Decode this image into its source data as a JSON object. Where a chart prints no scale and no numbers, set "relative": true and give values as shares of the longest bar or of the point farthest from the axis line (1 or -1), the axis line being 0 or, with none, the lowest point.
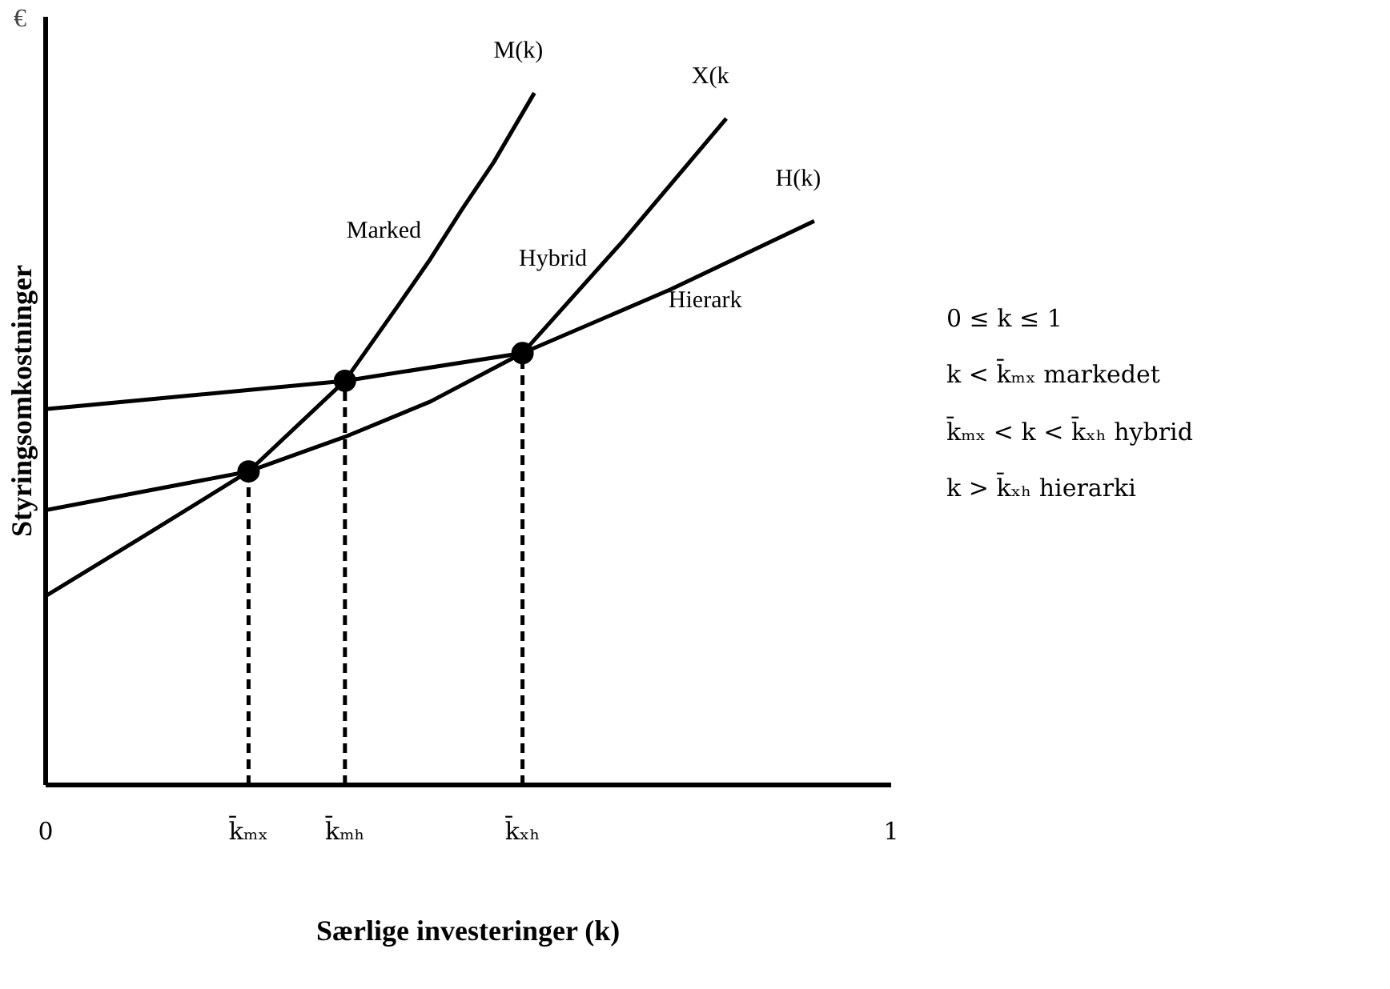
{
  "chart_data": {
    "type": "line",
    "title": "€",
    "xlabel": "Særlige investeringer (k)",
    "ylabel": "Styringsomkostninger",
    "relative": true,
    "xlim": [
      0,
      1
    ],
    "xticks": [
      0,
      {
        "value": 0.24,
        "label": "k̄ₘₓ"
      },
      {
        "value": 0.354,
        "label": "k̄ₘₕ"
      },
      {
        "value": 0.564,
        "label": "k̄ₓₕ"
      },
      1
    ],
    "line_style": "solid",
    "grid": false,
    "series": [
      {
        "name": "M(k)",
        "color": "#000000",
        "x": [
          0,
          0.114,
          0.24,
          0.354,
          0.417,
          0.455,
          0.492,
          0.53,
          0.578
        ],
        "values": [
          0.273,
          0.358,
          0.453,
          0.584,
          0.693,
          0.76,
          0.831,
          0.9,
          1
        ]
      },
      {
        "name": "X(k",
        "color": "#000000",
        "x": [
          0,
          0.24,
          0.354,
          0.455,
          0.564,
          0.682,
          0.805
        ],
        "values": [
          0.397,
          0.453,
          0.503,
          0.554,
          0.624,
          0.785,
          0.963
        ]
      },
      {
        "name": "H(k)",
        "color": "#000000",
        "x": [
          0,
          0.354,
          0.564,
          0.739,
          0.909
        ],
        "values": [
          0.543,
          0.584,
          0.624,
          0.716,
          0.815
        ]
      },
      {
        "type": "line",
        "line_style": "dashed",
        "color": "#000000",
        "x": [
          0.24,
          0.24
        ],
        "values": [
          0,
          0.453
        ]
      },
      {
        "type": "line",
        "line_style": "dashed",
        "color": "#000000",
        "x": [
          0.354,
          0.354
        ],
        "values": [
          0,
          0.584
        ]
      },
      {
        "type": "line",
        "line_style": "dashed",
        "color": "#000000",
        "x": [
          0.564,
          0.564
        ],
        "values": [
          0,
          0.624
        ]
      },
      {
        "type": "scatter",
        "marker": "circle",
        "color": "#000000",
        "x": [
          0.24,
          0.354,
          0.564
        ],
        "values": [
          0.453,
          0.584,
          0.624
        ]
      }
    ],
    "annotations": [
      "Marked",
      "Hybrid",
      "Hierark",
      "0 ≤ k ≤ 1",
      "k < k̄ₘₓ markedet",
      "k̄ₘₓ < k < k̄ₓₕ hybrid",
      "k > k̄ₓₕ hierarki"
    ]
  }
}
